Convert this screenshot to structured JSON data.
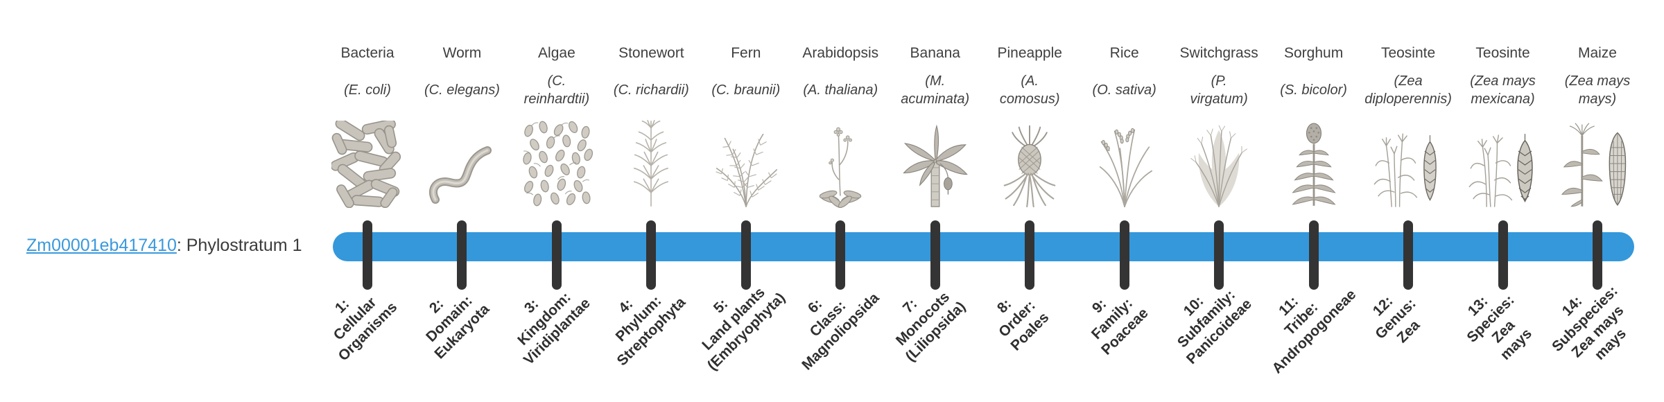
{
  "page": {
    "background": "#ffffff"
  },
  "gene": {
    "id": "Zm00001eb417410",
    "label_suffix": ": Phylostratum 1"
  },
  "timeline": {
    "bar_color": "#3498db",
    "tick_color": "#343434",
    "link_color": "#3a99dc",
    "num_strata": 14
  },
  "organisms": [
    {
      "common_name": "Bacteria",
      "scientific_name": "(E. coli)",
      "icon": "bacteria-illustration"
    },
    {
      "common_name": "Worm",
      "scientific_name": "(C. elegans)",
      "icon": "worm-illustration"
    },
    {
      "common_name": "Algae",
      "scientific_name": "(C.\nreinhardtii)",
      "icon": "algae-illustration"
    },
    {
      "common_name": "Stonewort",
      "scientific_name": "(C. richardii)",
      "icon": "stonewort-illustration"
    },
    {
      "common_name": "Fern",
      "scientific_name": "(C. braunii)",
      "icon": "fern-illustration"
    },
    {
      "common_name": "Arabidopsis",
      "scientific_name": "(A. thaliana)",
      "icon": "arabidopsis-illustration"
    },
    {
      "common_name": "Banana",
      "scientific_name": "(M.\nacuminata)",
      "icon": "banana-illustration"
    },
    {
      "common_name": "Pineapple",
      "scientific_name": "(A.\ncomosus)",
      "icon": "pineapple-illustration"
    },
    {
      "common_name": "Rice",
      "scientific_name": "(O. sativa)",
      "icon": "rice-illustration"
    },
    {
      "common_name": "Switchgrass",
      "scientific_name": "(P.\nvirgatum)",
      "icon": "switchgrass-illustration"
    },
    {
      "common_name": "Sorghum",
      "scientific_name": "(S. bicolor)",
      "icon": "sorghum-illustration"
    },
    {
      "common_name": "Teosinte",
      "scientific_name": "(Zea\ndiploperennis)",
      "icon": "teosinte-diploperennis-illustration"
    },
    {
      "common_name": "Teosinte",
      "scientific_name": "(Zea mays\nmexicana)",
      "icon": "teosinte-mexicana-illustration"
    },
    {
      "common_name": "Maize",
      "scientific_name": "(Zea mays\nmays)",
      "icon": "maize-illustration"
    }
  ],
  "strata": [
    {
      "label": "1:\nCellular\nOrganisms"
    },
    {
      "label": "2:\nDomain:\nEukaryota"
    },
    {
      "label": "3:\nKingdom:\nViridiplantae"
    },
    {
      "label": "4:\nPhylum:\nStreptophyta"
    },
    {
      "label": "5:\nLand plants\n(Embryophyta)"
    },
    {
      "label": "6:\nClass:\nMagnoliopsida"
    },
    {
      "label": "7:\nMonocots\n(Liliopsida)"
    },
    {
      "label": "8:\nOrder:\nPoales"
    },
    {
      "label": "9:\nFamily:\nPoaceae"
    },
    {
      "label": "10:\nSubfamily:\nPanicoideae"
    },
    {
      "label": "11:\nTribe:\nAndropogoneae"
    },
    {
      "label": "12:\nGenus:\nZea"
    },
    {
      "label": "13:\nSpecies:\nZea\nmays"
    },
    {
      "label": "14:\nSubspecies:\nZea mays\nmays"
    }
  ]
}
